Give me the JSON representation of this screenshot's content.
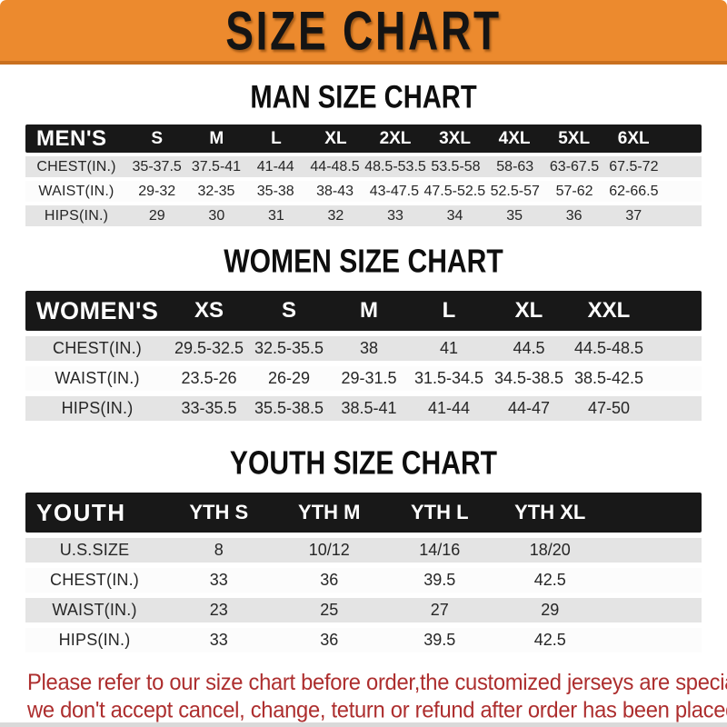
{
  "banner": {
    "title": "SIZE CHART"
  },
  "colors": {
    "banner_orange": "#EC8A2E",
    "banner_border": "#C9701F",
    "table_header_black": "#181818",
    "row_gray": "#E4E4E4",
    "disclaimer_red": "#AD2E2E"
  },
  "sections": {
    "men": {
      "heading": "MAN SIZE CHART",
      "header": [
        "MEN'S",
        "S",
        "M",
        "L",
        "XL",
        "2XL",
        "3XL",
        "4XL",
        "5XL",
        "6XL"
      ],
      "rows": [
        [
          "CHEST(IN.)",
          "35-37.5",
          "37.5-41",
          "41-44",
          "44-48.5",
          "48.5-53.5",
          "53.5-58",
          "58-63",
          "63-67.5",
          "67.5-72"
        ],
        [
          "WAIST(IN.)",
          "29-32",
          "32-35",
          "35-38",
          "38-43",
          "43-47.5",
          "47.5-52.5",
          "52.5-57",
          "57-62",
          "62-66.5"
        ],
        [
          "HIPS(IN.)",
          "29",
          "30",
          "31",
          "32",
          "33",
          "34",
          "35",
          "36",
          "37"
        ]
      ]
    },
    "women": {
      "heading": "WOMEN SIZE CHART",
      "header": [
        "WOMEN'S",
        "XS",
        "S",
        "M",
        "L",
        "XL",
        "XXL"
      ],
      "rows": [
        [
          "CHEST(IN.)",
          "29.5-32.5",
          "32.5-35.5",
          "38",
          "41",
          "44.5",
          "44.5-48.5"
        ],
        [
          "WAIST(IN.)",
          "23.5-26",
          "26-29",
          "29-31.5",
          "31.5-34.5",
          "34.5-38.5",
          "38.5-42.5"
        ],
        [
          "HIPS(IN.)",
          "33-35.5",
          "35.5-38.5",
          "38.5-41",
          "41-44",
          "44-47",
          "47-50"
        ]
      ]
    },
    "youth": {
      "heading": "YOUTH SIZE CHART",
      "header": [
        "YOUTH",
        "YTH S",
        "YTH M",
        "YTH L",
        "YTH XL"
      ],
      "rows": [
        [
          "U.S.SIZE",
          "8",
          "10/12",
          "14/16",
          "18/20"
        ],
        [
          "CHEST(IN.)",
          "33",
          "36",
          "39.5",
          "42.5"
        ],
        [
          "WAIST(IN.)",
          "23",
          "25",
          "27",
          "29"
        ],
        [
          "HIPS(IN.)",
          "33",
          "36",
          "39.5",
          "42.5"
        ]
      ]
    }
  },
  "disclaimer": {
    "line1": "Please refer to our size chart before order,the customized jerseys are special products,",
    "line2": "we don't accept cancel, change, teturn or refund after order has been placed!"
  }
}
